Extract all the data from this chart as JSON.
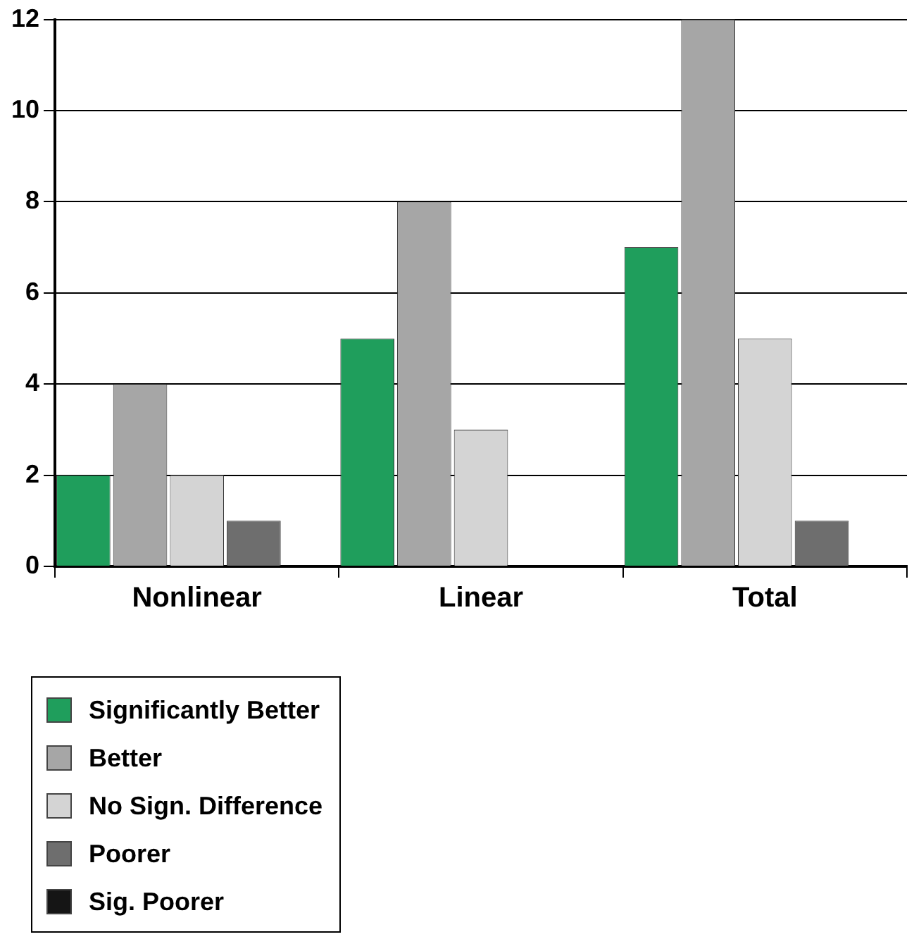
{
  "chart_data": {
    "type": "bar",
    "categories": [
      "Nonlinear",
      "Linear",
      "Total"
    ],
    "series": [
      {
        "name": "Significantly Better",
        "color": "#1f9e5c",
        "values": [
          2,
          5,
          7
        ]
      },
      {
        "name": "Better",
        "color": "#a6a6a6",
        "values": [
          4,
          8,
          12
        ]
      },
      {
        "name": "No Sign. Difference",
        "color": "#d4d4d4",
        "values": [
          2,
          3,
          5
        ]
      },
      {
        "name": "Poorer",
        "color": "#6e6e6e",
        "values": [
          1,
          0,
          1
        ]
      },
      {
        "name": "Sig. Poorer",
        "color": "#151515",
        "values": [
          0,
          0,
          0
        ]
      }
    ],
    "ylim": [
      0,
      12
    ],
    "yticks": [
      0,
      2,
      4,
      6,
      8,
      10,
      12
    ],
    "grid": "y",
    "legend": "bottom left"
  }
}
